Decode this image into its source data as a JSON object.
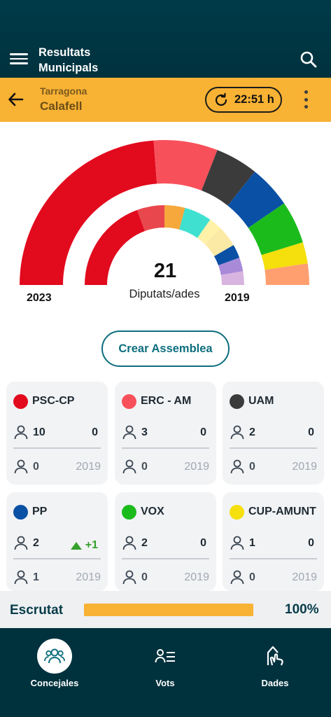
{
  "header": {
    "title_line1": "Resultats",
    "title_line2": "Municipals"
  },
  "location": {
    "region": "Tarragona",
    "city": "Calafell",
    "time": "22:51 h"
  },
  "chart_data": {
    "type": "pie",
    "outer_label": "2023",
    "inner_label": "2019",
    "seats": "21",
    "seats_label": "Diputats/ades",
    "outer": [
      {
        "name": "PSC-CP",
        "value": 10,
        "color": "#e20a1d"
      },
      {
        "name": "ERC - AM",
        "value": 3,
        "color": "#f8505a"
      },
      {
        "name": "UAM",
        "value": 2,
        "color": "#3b3b3b"
      },
      {
        "name": "PP",
        "value": 2,
        "color": "#0a50a5"
      },
      {
        "name": "VOX",
        "value": 2,
        "color": "#1cbb1c"
      },
      {
        "name": "CUP-AMUNT",
        "value": 1,
        "color": "#f5df0c"
      },
      {
        "name": "",
        "value": 1,
        "color": "#ff9f70"
      }
    ],
    "inner": [
      {
        "value": 7,
        "color": "#e20a1d"
      },
      {
        "value": 2,
        "color": "#e8474d"
      },
      {
        "value": 1.5,
        "color": "#f6a83c"
      },
      {
        "value": 2,
        "color": "#3fe0cf"
      },
      {
        "value": 1,
        "color": "#fff2a8"
      },
      {
        "value": 1.5,
        "color": "#fbe9a6"
      },
      {
        "value": 1,
        "color": "#0a50a5"
      },
      {
        "value": 1,
        "color": "#a98ad9"
      },
      {
        "value": 1,
        "color": "#d8b4e0"
      }
    ]
  },
  "actions": {
    "assembly": "Crear Assemblea"
  },
  "parties": [
    {
      "name": "PSC-CP",
      "color": "#e20a1d",
      "seats": "10",
      "diff": "0",
      "prev": "0",
      "year": "2019",
      "up": false
    },
    {
      "name": "ERC - AM",
      "color": "#f8505a",
      "seats": "3",
      "diff": "0",
      "prev": "0",
      "year": "2019",
      "up": false
    },
    {
      "name": "UAM",
      "color": "#3b3b3b",
      "seats": "2",
      "diff": "0",
      "prev": "0",
      "year": "2019",
      "up": false
    },
    {
      "name": "PP",
      "color": "#0a50a5",
      "seats": "2",
      "diff": "+1",
      "prev": "1",
      "year": "2019",
      "up": true
    },
    {
      "name": "VOX",
      "color": "#1cbb1c",
      "seats": "2",
      "diff": "0",
      "prev": "0",
      "year": "2019",
      "up": false
    },
    {
      "name": "CUP-AMUNT",
      "color": "#f5df0c",
      "seats": "1",
      "diff": "0",
      "prev": "0",
      "year": "2019",
      "up": false
    }
  ],
  "scrutiny": {
    "label": "Escrutat",
    "percent": "100%",
    "fraction": 1.0
  },
  "tabs": [
    {
      "label": "Concejales",
      "icon": "people-group-icon",
      "active": true
    },
    {
      "label": "Vots",
      "icon": "vote-list-icon",
      "active": false
    },
    {
      "label": "Dades",
      "icon": "data-hand-icon",
      "active": false
    }
  ]
}
